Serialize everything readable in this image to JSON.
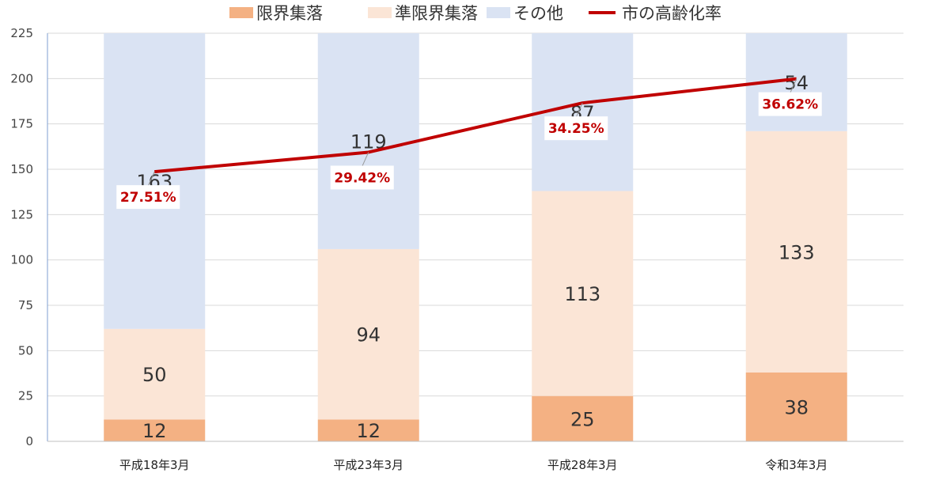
{
  "chart_data": {
    "type": "bar",
    "stacked": true,
    "categories": [
      "平成18年3月",
      "平成23年3月",
      "平成28年3月",
      "令和3年3月"
    ],
    "series": [
      {
        "name": "限界集落",
        "values": [
          12,
          12,
          25,
          38
        ],
        "color": "#f4b183"
      },
      {
        "name": "準限界集落",
        "values": [
          50,
          94,
          113,
          133
        ],
        "color": "#fbe5d6"
      },
      {
        "name": "その他",
        "values": [
          163,
          119,
          87,
          54
        ],
        "color": "#dae3f3"
      }
    ],
    "line_series": {
      "name": "市の高齢化率",
      "color": "#c00000",
      "values": [
        27.51,
        29.42,
        34.25,
        36.62
      ],
      "labels": [
        "27.51%",
        "29.42%",
        "34.25%",
        "36.62%"
      ]
    },
    "ylim": [
      0,
      225
    ],
    "yticks": [
      "0",
      "25",
      "50",
      "75",
      "100",
      "125",
      "150",
      "175",
      "200",
      "225"
    ],
    "grid": true,
    "legend_position": "top-center"
  }
}
